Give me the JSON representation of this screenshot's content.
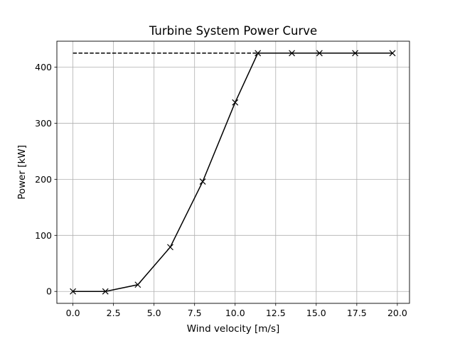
{
  "chart_data": {
    "type": "line",
    "title": "Turbine System Power Curve",
    "xlabel": "Wind velocity [m/s]",
    "ylabel": "Power [kW]",
    "xlim": [
      -0.99,
      20.75
    ],
    "ylim": [
      -21.25,
      446.25
    ],
    "x_ticks": [
      0.0,
      2.5,
      5.0,
      7.5,
      10.0,
      12.5,
      15.0,
      17.5,
      20.0
    ],
    "x_tick_labels": [
      "0.0",
      "2.5",
      "5.0",
      "7.5",
      "10.0",
      "12.5",
      "15.0",
      "17.5",
      "20.0"
    ],
    "y_ticks": [
      0,
      100,
      200,
      300,
      400
    ],
    "y_tick_labels": [
      "0",
      "100",
      "200",
      "300",
      "400"
    ],
    "grid": true,
    "legend": "none",
    "colors": {
      "line": "#000000",
      "grid": "#b0b0b0",
      "axes": "#000000"
    },
    "series": [
      {
        "style": "solid",
        "marker": "x",
        "x": [
          0.0,
          2.0,
          4.0,
          6.0,
          8.0,
          10.0,
          11.4,
          13.5,
          15.2,
          17.4,
          19.7
        ],
        "y": [
          0,
          0,
          12,
          79,
          196,
          337,
          425,
          425,
          425,
          425,
          425
        ]
      },
      {
        "style": "dashed",
        "marker": "none",
        "x": [
          0.0,
          19.7
        ],
        "y": [
          425,
          425
        ]
      }
    ]
  }
}
